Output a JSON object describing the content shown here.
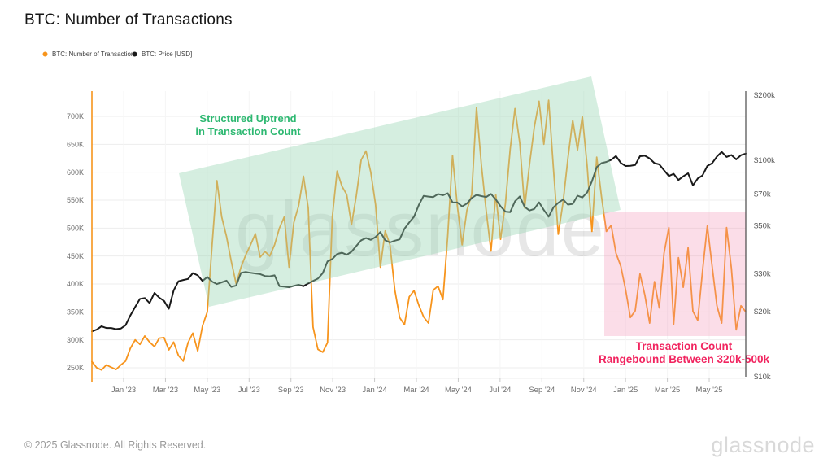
{
  "page": {
    "title": "BTC: Number of Transactions"
  },
  "legend": [
    {
      "label": "BTC: Number of Transactions",
      "color": "#f7941c"
    },
    {
      "label": "BTC: Price [USD]",
      "color": "#191919"
    }
  ],
  "annotations": {
    "uptrend": {
      "line1": "Structured Uptrend",
      "line2": "in Transaction Count",
      "color": "#2db871"
    },
    "rangebound": {
      "line1": "Transaction Count",
      "line2": "Rangebound Between 320k-500k",
      "color": "#f1245f"
    }
  },
  "watermark": "glassnode",
  "footer": {
    "copyright": "© 2025 Glassnode. All Rights Reserved.",
    "brand": "glassnode"
  },
  "chart_data": {
    "type": "line",
    "title": "BTC: Number of Transactions",
    "sampling": "weekly points, Nov 2022 through Jun 2025",
    "x_tick_labels": [
      "Jan '23",
      "Mar '23",
      "May '23",
      "Jul '23",
      "Sep '23",
      "Nov '23",
      "Jan '24",
      "Mar '24",
      "May '24",
      "Jul '24",
      "Sep '24",
      "Nov '24",
      "Jan '25",
      "Mar '25",
      "May '25"
    ],
    "left_axis": {
      "title": "BTC: Number of Transactions",
      "unit": "K",
      "scale": "linear",
      "range": [
        240,
        745
      ],
      "tick_values": [
        250,
        300,
        350,
        400,
        450,
        500,
        550,
        600,
        650,
        700
      ],
      "tick_labels": [
        "250K",
        "300K",
        "350K",
        "400K",
        "450K",
        "500K",
        "550K",
        "600K",
        "650K",
        "700K"
      ]
    },
    "right_axis": {
      "title": "BTC: Price [USD]",
      "unit": "$k",
      "scale": "log",
      "range": [
        10,
        200
      ],
      "tick_values": [
        10,
        20,
        30,
        50,
        70,
        100,
        200
      ],
      "tick_labels": [
        "$10k",
        "$20k",
        "$30k",
        "$50k",
        "$70k",
        "$100k",
        "$200k"
      ]
    },
    "legend_position": "top-left",
    "grid": true,
    "series": [
      {
        "name": "BTC: Number of Transactions",
        "axis": "left",
        "color": "#f7941c",
        "unit": "thousand transactions",
        "values": [
          261,
          250,
          246,
          255,
          251,
          247,
          255,
          262,
          285,
          300,
          292,
          307,
          296,
          288,
          303,
          304,
          282,
          296,
          272,
          262,
          295,
          312,
          280,
          325,
          350,
          470,
          585,
          520,
          485,
          440,
          400,
          430,
          452,
          470,
          490,
          448,
          458,
          450,
          470,
          500,
          520,
          430,
          510,
          540,
          593,
          536,
          323,
          283,
          278,
          295,
          520,
          602,
          575,
          560,
          506,
          558,
          622,
          638,
          600,
          542,
          430,
          495,
          470,
          390,
          340,
          327,
          377,
          388,
          362,
          341,
          330,
          389,
          396,
          372,
          486,
          630,
          540,
          470,
          532,
          560,
          716,
          613,
          531,
          459,
          560,
          480,
          543,
          641,
          714,
          652,
          536,
          613,
          680,
          727,
          650,
          729,
          606,
          489,
          547,
          625,
          693,
          640,
          700,
          612,
          494,
          627,
          556,
          494,
          505,
          455,
          432,
          390,
          340,
          352,
          418,
          380,
          330,
          404,
          357,
          455,
          501,
          328,
          447,
          394,
          465,
          351,
          335,
          423,
          504,
          432,
          361,
          330,
          501,
          428,
          318,
          361,
          350
        ]
      },
      {
        "name": "BTC: Price [USD]",
        "axis": "right",
        "color": "#191919",
        "unit": "thousand USD",
        "values": [
          16.2,
          16.5,
          17.1,
          16.8,
          16.8,
          16.6,
          16.7,
          17.3,
          19.2,
          21.0,
          22.9,
          23.1,
          21.9,
          24.4,
          23.2,
          22.4,
          20.6,
          25.0,
          27.6,
          28.0,
          28.3,
          30.1,
          29.4,
          27.7,
          28.9,
          27.5,
          26.8,
          27.3,
          27.8,
          26.0,
          26.4,
          30.2,
          30.5,
          30.2,
          30.0,
          29.8,
          29.2,
          29.1,
          29.4,
          26.2,
          26.1,
          25.9,
          26.3,
          26.6,
          26.2,
          27.0,
          27.7,
          28.4,
          30.1,
          34.1,
          35.0,
          36.9,
          37.4,
          36.6,
          37.8,
          40.2,
          42.7,
          43.7,
          42.9,
          44.2,
          46.6,
          42.7,
          41.7,
          42.5,
          43.1,
          48.3,
          51.6,
          54.9,
          62.2,
          68.5,
          68.0,
          67.6,
          69.8,
          69.0,
          70.4,
          63.9,
          63.8,
          61.2,
          63.1,
          67.0,
          69.2,
          68.3,
          67.7,
          69.9,
          65.9,
          61.3,
          57.9,
          57.6,
          64.6,
          68.1,
          60.9,
          58.6,
          59.6,
          63.9,
          58.9,
          54.9,
          60.6,
          63.6,
          65.9,
          62.4,
          62.9,
          68.6,
          67.3,
          71.0,
          80.0,
          93.0,
          97.0,
          98.3,
          100.5,
          104.6,
          97.3,
          94.1,
          94.4,
          95.1,
          104.4,
          105.0,
          101.9,
          97.0,
          95.8,
          90.0,
          84.6,
          86.6,
          81.1,
          84.3,
          87.1,
          76.6,
          82.4,
          85.1,
          94.1,
          96.9,
          104.1,
          109.3,
          103.6,
          105.8,
          101.0,
          105.6,
          107.4
        ]
      }
    ],
    "highlight_regions": [
      {
        "name": "uptrend-band",
        "label": "Structured Uptrend in Transaction Count",
        "color_hint": "green"
      },
      {
        "name": "rangebound-box",
        "label": "Transaction Count Rangebound Between 320k-500k",
        "color_hint": "pink",
        "range_low_k": 320,
        "range_high_k": 500
      }
    ]
  }
}
